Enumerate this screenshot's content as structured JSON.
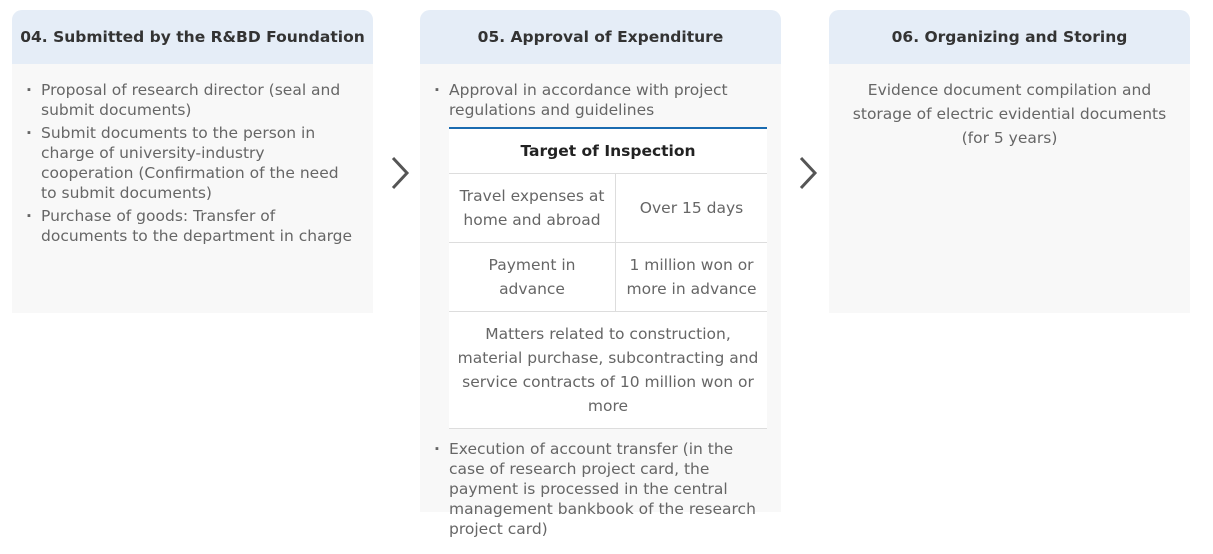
{
  "steps": [
    {
      "title": "04. Submitted by the R&BD Foundation",
      "items": [
        "Proposal of research director (seal and submit documents)",
        "Submit documents to the person in charge of university-industry cooperation (Confirmation of the need to submit documents)",
        "Purchase of goods: Transfer of documents to the department in charge"
      ]
    },
    {
      "title": "05. Approval of Expenditure",
      "items": [
        "Approval in accordance with project regulations and guidelines",
        "Execution of account transfer (in the case of research project card, the payment is processed in the central management bankbook of the research project card)"
      ],
      "table": {
        "header": "Target of Inspection",
        "rows": [
          [
            "Travel expenses at home and abroad",
            "Over 15 days"
          ],
          [
            "Payment in advance",
            "1 million won or more in advance"
          ]
        ],
        "full_row": "Matters related to construction, material purchase, subcontracting and service contracts of 10 million won or more"
      }
    },
    {
      "title": "06. Organizing and Storing",
      "text": "Evidence document compilation and storage of electric evidential documents",
      "note": "(for 5 years)"
    }
  ],
  "colors": {
    "header_bg": "#e5edf7",
    "body_bg": "#f8f8f8",
    "table_accent": "#1a6bb0"
  },
  "arrow_icon": "chevron-right-icon"
}
